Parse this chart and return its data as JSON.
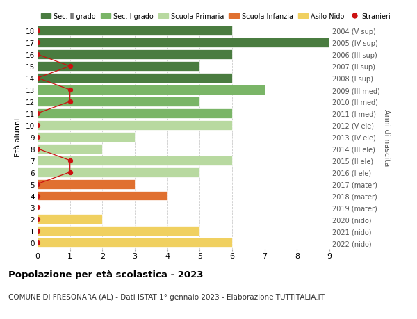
{
  "ages": [
    18,
    17,
    16,
    15,
    14,
    13,
    12,
    11,
    10,
    9,
    8,
    7,
    6,
    5,
    4,
    3,
    2,
    1,
    0
  ],
  "years": [
    "2004 (V sup)",
    "2005 (IV sup)",
    "2006 (III sup)",
    "2007 (II sup)",
    "2008 (I sup)",
    "2009 (III med)",
    "2010 (II med)",
    "2011 (I med)",
    "2012 (V ele)",
    "2013 (IV ele)",
    "2014 (III ele)",
    "2015 (II ele)",
    "2016 (I ele)",
    "2017 (mater)",
    "2018 (mater)",
    "2019 (mater)",
    "2020 (nido)",
    "2021 (nido)",
    "2022 (nido)"
  ],
  "bar_values": [
    6,
    9,
    6,
    5,
    6,
    7,
    5,
    6,
    6,
    3,
    2,
    6,
    5,
    3,
    4,
    0,
    2,
    5,
    6
  ],
  "bar_colors": [
    "#4a7c40",
    "#4a7c40",
    "#4a7c40",
    "#4a7c40",
    "#4a7c40",
    "#7ab567",
    "#7ab567",
    "#7ab567",
    "#b8d9a0",
    "#b8d9a0",
    "#b8d9a0",
    "#b8d9a0",
    "#b8d9a0",
    "#e07030",
    "#e07030",
    "#e07030",
    "#f0d060",
    "#f0d060",
    "#f0d060"
  ],
  "stranieri_values": [
    0,
    0,
    0,
    1,
    0,
    1,
    1,
    0,
    0,
    0,
    0,
    1,
    1,
    0,
    0,
    0,
    0,
    0,
    0
  ],
  "stranieri_y": [
    18,
    17,
    16,
    15,
    14,
    13,
    12,
    11,
    10,
    9,
    8,
    7,
    6,
    5,
    4,
    3,
    2,
    1,
    0
  ],
  "legend_labels": [
    "Sec. II grado",
    "Sec. I grado",
    "Scuola Primaria",
    "Scuola Infanzia",
    "Asilo Nido",
    "Stranieri"
  ],
  "legend_colors": [
    "#4a7c40",
    "#7ab567",
    "#b8d9a0",
    "#e07030",
    "#f0d060",
    "#cc1111"
  ],
  "title": "Popolazione per età scolastica - 2023",
  "subtitle": "COMUNE DI FRESONARA (AL) - Dati ISTAT 1° gennaio 2023 - Elaborazione TUTTITALIA.IT",
  "ylabel_left": "Età alunni",
  "ylabel_right": "Anni di nascita",
  "xlim": [
    0,
    9
  ],
  "ylim": [
    -0.5,
    18.5
  ],
  "bg_color": "#ffffff",
  "grid_color": "#cccccc"
}
